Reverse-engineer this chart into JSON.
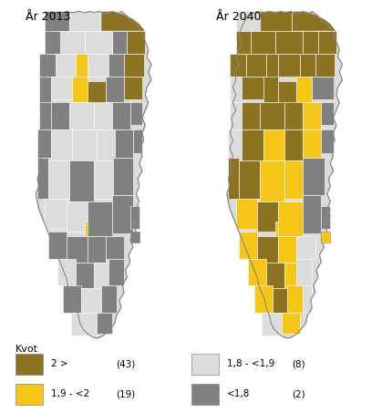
{
  "title_left": "År 2013",
  "title_right": "År 2040",
  "legend_title": "Kvot",
  "legend_items": [
    {
      "label": "2 >",
      "count": "(43)",
      "color": "#8B7322"
    },
    {
      "label": "1,9 - <2",
      "count": "(19)",
      "color": "#F5C518"
    },
    {
      "label": "1,8 - <1,9",
      "count": "(8)",
      "color": "#DCDCDC"
    },
    {
      "label": "<1,8",
      "count": "(2)",
      "color": "#808080"
    }
  ],
  "background_color": "#FFFFFF",
  "figsize": [
    4.19,
    4.53
  ],
  "dpi": 100
}
